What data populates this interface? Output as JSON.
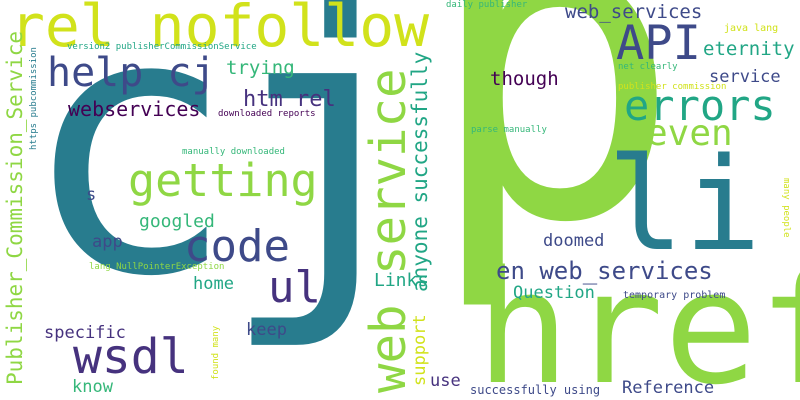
{
  "palette": {
    "teal": "#287c8e",
    "green": "#8fd744",
    "purple": "#46327e",
    "lime": "#d1e21b",
    "seafoam": "#35b779",
    "indigo": "#3e4a89",
    "mint": "#21a685",
    "dark": "#440154"
  },
  "words": [
    "cj",
    "p",
    "href",
    "li",
    "rel nofollow",
    "web service",
    "errors",
    "API",
    "getting",
    "code",
    "wsdl",
    "help cj",
    "even",
    "ul",
    "en web_services",
    "Publisher_Commission_Service",
    "anyone successfully",
    "htm rel",
    "webservices",
    "web_services",
    "eternity",
    "trying",
    "though",
    "service",
    "Links",
    "doomed",
    "Question",
    "googled",
    "app",
    "s",
    "home",
    "keep",
    "specific",
    "know",
    "support",
    "use",
    "Reference",
    "successfully using",
    "temporary problem",
    "many people",
    "found many",
    "https pubcommission",
    "version2 publisherCommissionService",
    "downloaded reports",
    "manually downloaded",
    "lang NullPointerException",
    "daily publisher",
    "publisher commission",
    "java lang",
    "net clearly",
    "parse manually"
  ]
}
